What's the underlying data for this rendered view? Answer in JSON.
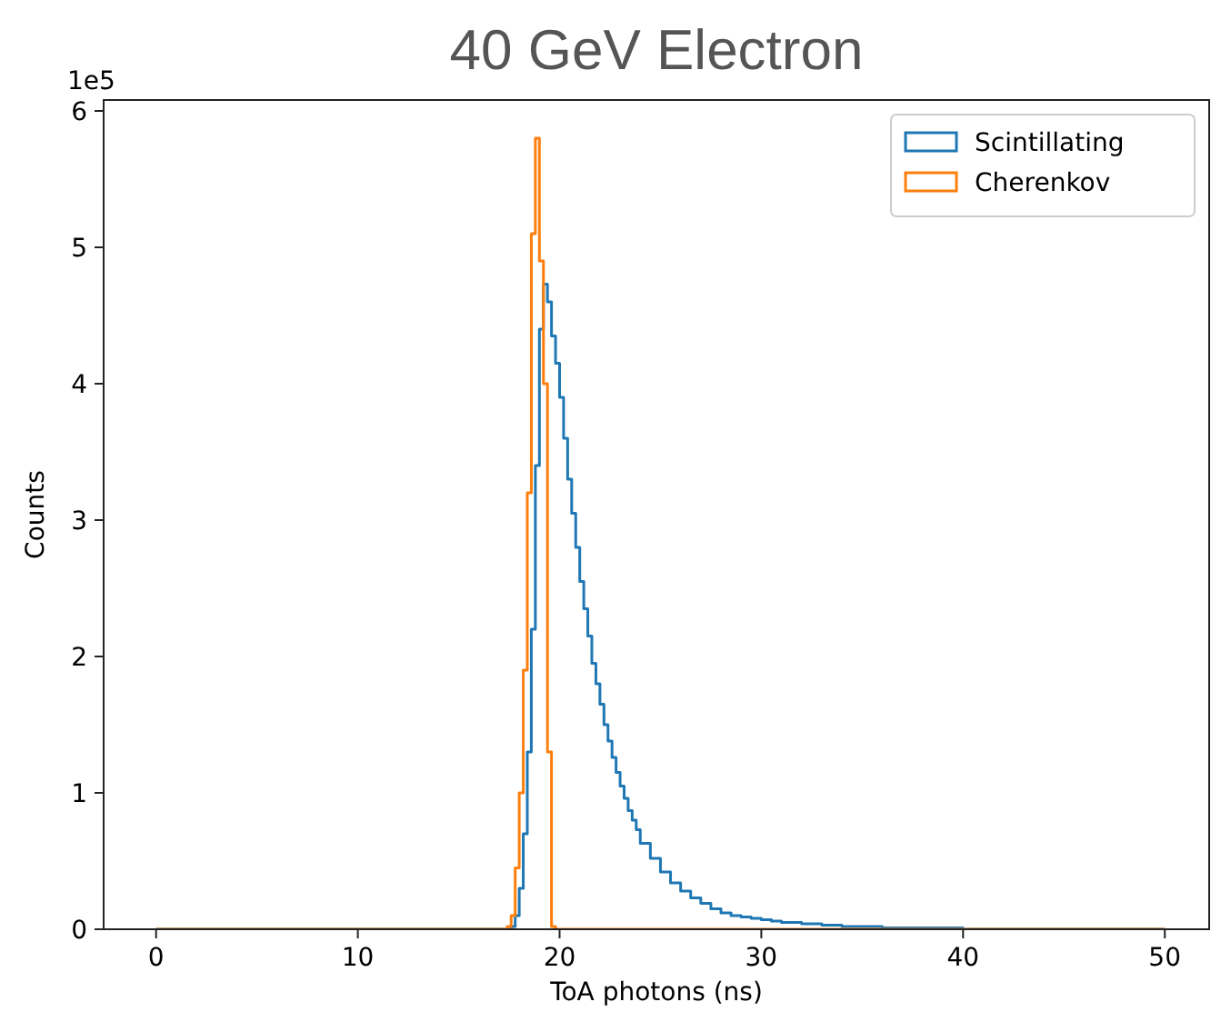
{
  "chart_data": {
    "type": "histogram",
    "title": "40 GeV Electron",
    "xlabel": "ToA photons (ns)",
    "ylabel": "Counts",
    "annotations": [
      "1e5"
    ],
    "xlim": [
      -2.6,
      52.2
    ],
    "xticks": [
      0,
      10,
      20,
      30,
      40,
      50
    ],
    "ylim": [
      0,
      6.08
    ],
    "yticks": [
      0,
      1,
      2,
      3,
      4,
      5,
      6
    ],
    "grid": false,
    "legend": "top right",
    "line_style": "solid",
    "bins": [
      0,
      17.4,
      17.6,
      17.8,
      18.0,
      18.2,
      18.4,
      18.6,
      18.8,
      19.0,
      19.2,
      19.4,
      19.6,
      19.8,
      20.0,
      20.2,
      20.4,
      20.6,
      20.8,
      21.0,
      21.2,
      21.4,
      21.6,
      21.8,
      22.0,
      22.2,
      22.4,
      22.6,
      22.8,
      23.0,
      23.2,
      23.4,
      23.6,
      23.8,
      24.0,
      24.5,
      25,
      25.5,
      26,
      26.5,
      27,
      27.5,
      28,
      28.5,
      29,
      29.5,
      30,
      30.5,
      31,
      31.5,
      32,
      33,
      34,
      35,
      36,
      38,
      40,
      50
    ],
    "series": [
      {
        "name": "Scintillating",
        "color": "#1f77b4",
        "values": [
          0,
          0,
          0.02,
          0.1,
          0.3,
          0.7,
          1.3,
          2.2,
          3.4,
          4.4,
          4.73,
          4.6,
          4.35,
          4.15,
          3.9,
          3.6,
          3.3,
          3.05,
          2.8,
          2.55,
          2.35,
          2.15,
          1.95,
          1.8,
          1.65,
          1.5,
          1.38,
          1.26,
          1.15,
          1.05,
          0.96,
          0.87,
          0.8,
          0.73,
          0.63,
          0.52,
          0.42,
          0.34,
          0.28,
          0.23,
          0.19,
          0.15,
          0.12,
          0.1,
          0.09,
          0.08,
          0.07,
          0.06,
          0.05,
          0.05,
          0.04,
          0.03,
          0.02,
          0.02,
          0.01,
          0.01,
          0
        ]
      },
      {
        "name": "Cherenkov",
        "color": "#ff7f0e",
        "values": [
          0,
          0.02,
          0.1,
          0.45,
          1.0,
          1.9,
          3.2,
          5.1,
          5.8,
          4.9,
          4.0,
          1.3,
          0.02,
          0,
          0,
          0,
          0,
          0,
          0,
          0,
          0,
          0,
          0,
          0,
          0,
          0,
          0,
          0,
          0,
          0,
          0,
          0,
          0,
          0,
          0,
          0,
          0,
          0,
          0,
          0,
          0,
          0,
          0,
          0,
          0,
          0,
          0,
          0,
          0,
          0,
          0,
          0,
          0,
          0,
          0,
          0,
          0
        ]
      }
    ]
  }
}
